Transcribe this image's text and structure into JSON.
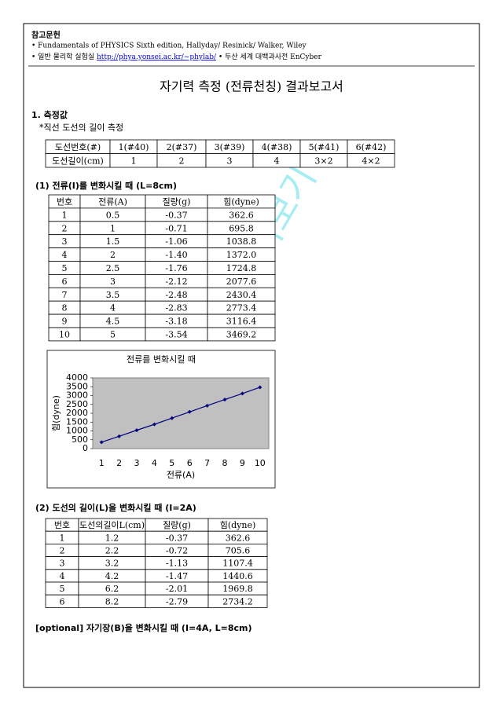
{
  "references": {
    "heading": "참고문헌",
    "item1": "• Fundamentals of PHYSICS Sixth edition,  Hallyday/ Resinick/ Walker, Wiley",
    "item2_prefix": "• 일반 물리학 실험실 ",
    "item2_link": "http://phya.yonsei.ac.kr/~phylab/",
    "item2_suffix": "  • 두산 세계 대백과사전 EnCyber"
  },
  "title": "자기력 측정 (전류천칭) 결과보고서",
  "section1": {
    "heading": "1. 측정값",
    "subheading": "*직선 도선의 길이 측정",
    "table": {
      "header": [
        "도선번호(#)",
        "1(#40)",
        "2(#37)",
        "3(#39)",
        "4(#38)",
        "5(#41)",
        "6(#42)"
      ],
      "rows": [
        [
          "도선길이(cm)",
          "1",
          "2",
          "3",
          "4",
          "3×2",
          "4×2"
        ]
      ]
    }
  },
  "part1": {
    "heading": "(1) 전류(I)를 변화시킬 때 (L=8cm)",
    "table": {
      "header": [
        "번호",
        "전류(A)",
        "질량(g)",
        "힘(dyne)"
      ],
      "rows": [
        [
          "1",
          "0.5",
          "-0.37",
          "362.6"
        ],
        [
          "2",
          "1",
          "-0.71",
          "695.8"
        ],
        [
          "3",
          "1.5",
          "-1.06",
          "1038.8"
        ],
        [
          "4",
          "2",
          "-1.40",
          "1372.0"
        ],
        [
          "5",
          "2.5",
          "-1.76",
          "1724.8"
        ],
        [
          "6",
          "3",
          "-2.12",
          "2077.6"
        ],
        [
          "7",
          "3.5",
          "-2.48",
          "2430.4"
        ],
        [
          "8",
          "4",
          "-2.83",
          "2773.4"
        ],
        [
          "9",
          "4.5",
          "-3.18",
          "3116.4"
        ],
        [
          "10",
          "5",
          "-3.54",
          "3469.2"
        ]
      ]
    }
  },
  "chart_data": {
    "type": "line",
    "title": "전류를 변화시킬 때",
    "x_label": "전류(A)",
    "y_label": "힘(dyne)",
    "categories": [
      "1",
      "2",
      "3",
      "4",
      "5",
      "6",
      "7",
      "8",
      "9",
      "10"
    ],
    "series": [
      {
        "name": "힘(dyne)",
        "color": "#000080",
        "values": [
          362.6,
          695.8,
          1038.8,
          1372.0,
          1724.8,
          2077.6,
          2430.4,
          2773.4,
          3116.4,
          3469.2
        ]
      }
    ],
    "ylim": [
      0,
      4000
    ],
    "yticks": [
      0,
      500,
      1000,
      1500,
      2000,
      2500,
      3000,
      3500,
      4000
    ],
    "grid": false,
    "plot_background": "#c0c0c0"
  },
  "part2": {
    "heading": "(2) 도선의 길이(L)을 변화시킬 때 (I=2A)",
    "table": {
      "header": [
        "번호",
        "도선의길이L(cm)",
        "질량(g)",
        "힘(dyne)"
      ],
      "rows": [
        [
          "1",
          "1.2",
          "-0.37",
          "362.6"
        ],
        [
          "2",
          "2.2",
          "-0.72",
          "705.6"
        ],
        [
          "3",
          "3.2",
          "-1.13",
          "1107.4"
        ],
        [
          "4",
          "4.2",
          "-1.47",
          "1440.6"
        ],
        [
          "5",
          "6.2",
          "-2.01",
          "1969.8"
        ],
        [
          "6",
          "8.2",
          "-2.79",
          "2734.2"
        ]
      ]
    }
  },
  "optional": "[optional] 자기장(B)을 변화시킬 때 (I=4A, L=8cm)",
  "watermark": "미리보기"
}
